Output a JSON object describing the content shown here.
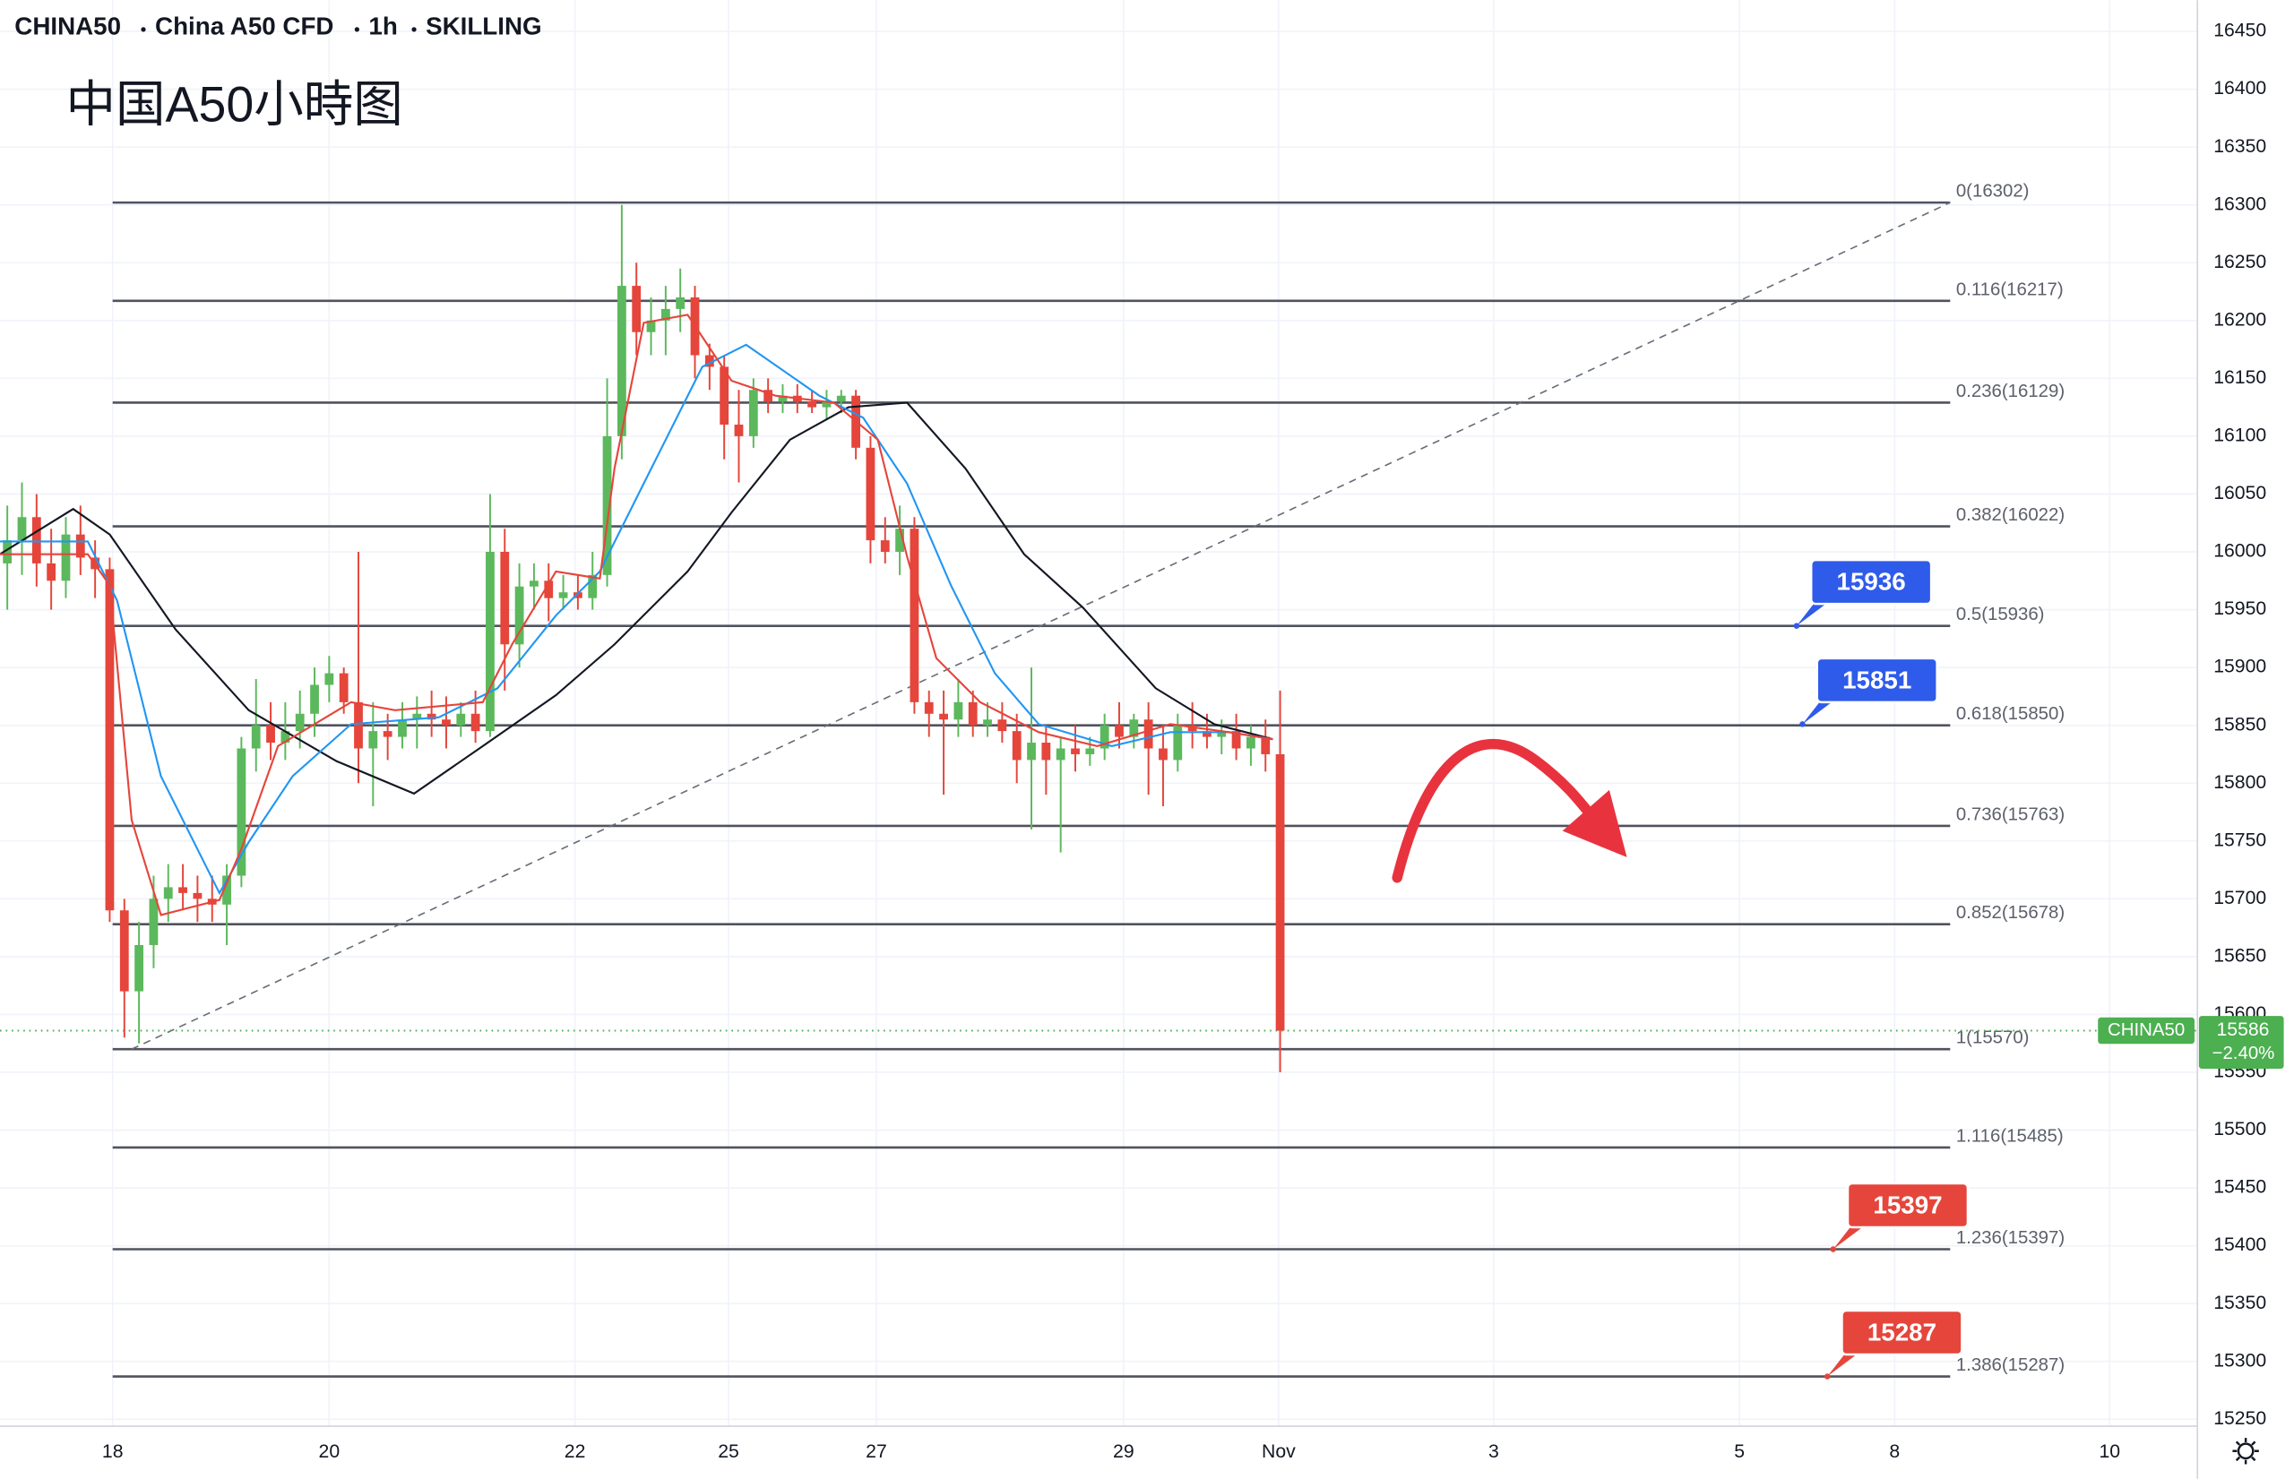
{
  "chart_data": {
    "type": "candlestick",
    "header": [
      "CHINA50",
      "China A50 CFD",
      "1h",
      "SKILLING"
    ],
    "title": "中国A50小時图",
    "xlim": [
      0,
      150
    ],
    "xticks": [
      {
        "value": 7.7,
        "label": "18"
      },
      {
        "value": 22.5,
        "label": "20"
      },
      {
        "value": 39.3,
        "label": "22"
      },
      {
        "value": 49.8,
        "label": "25"
      },
      {
        "value": 59.9,
        "label": "27"
      },
      {
        "value": 76.8,
        "label": "29"
      },
      {
        "value": 87.4,
        "label": "Nov"
      },
      {
        "value": 102.1,
        "label": "3"
      },
      {
        "value": 118.9,
        "label": "5"
      },
      {
        "value": 129.5,
        "label": "8"
      },
      {
        "value": 144.2,
        "label": "10"
      }
    ],
    "ylim": [
      15244,
      16477
    ],
    "yticks": [
      15250,
      15300,
      15350,
      15400,
      15450,
      15500,
      15550,
      15600,
      15650,
      15700,
      15750,
      15800,
      15850,
      15900,
      15950,
      16000,
      16050,
      16100,
      16150,
      16200,
      16250,
      16300,
      16350,
      16400,
      16450
    ],
    "grid": true,
    "up_color": "#5cb85c",
    "down_color": "#e5453b",
    "candles": {
      "x": [
        0.5,
        1.5,
        2.5,
        3.5,
        4.5,
        5.5,
        6.5,
        7.5,
        8.5,
        9.5,
        10.5,
        11.5,
        12.5,
        13.5,
        14.5,
        15.5,
        16.5,
        17.5,
        18.5,
        19.5,
        20.5,
        21.5,
        22.5,
        23.5,
        24.5,
        25.5,
        26.5,
        27.5,
        28.5,
        29.5,
        30.5,
        31.5,
        32.5,
        33.5,
        34.5,
        35.5,
        36.5,
        37.5,
        38.5,
        39.5,
        40.5,
        41.5,
        42.5,
        43.5,
        44.5,
        45.5,
        46.5,
        47.5,
        48.5,
        49.5,
        50.5,
        51.5,
        52.5,
        53.5,
        54.5,
        55.5,
        56.5,
        57.5,
        58.5,
        59.5,
        60.5,
        61.5,
        62.5,
        63.5,
        64.5,
        65.5,
        66.5,
        67.5,
        68.5,
        69.5,
        70.5,
        71.5,
        72.5,
        73.5,
        74.5,
        75.5,
        76.5,
        77.5,
        78.5,
        79.5,
        80.5,
        81.5,
        82.5,
        83.5,
        84.5,
        85.5,
        86.5,
        87.5
      ],
      "open": [
        15990,
        16010,
        16030,
        15990,
        15975,
        16015,
        15995,
        15985,
        15690,
        15620,
        15660,
        15700,
        15710,
        15705,
        15700,
        15695,
        15720,
        15830,
        15850,
        15835,
        15845,
        15860,
        15885,
        15895,
        15870,
        15830,
        15845,
        15840,
        15855,
        15860,
        15855,
        15850,
        15860,
        15845,
        16000,
        15920,
        15970,
        15975,
        15960,
        15965,
        15960,
        15980,
        16100,
        16230,
        16190,
        16200,
        16210,
        16220,
        16170,
        16160,
        16110,
        16100,
        16140,
        16130,
        16135,
        16130,
        16125,
        16130,
        16135,
        16090,
        16010,
        16000,
        16020,
        15870,
        15860,
        15855,
        15870,
        15850,
        15855,
        15845,
        15820,
        15835,
        15820,
        15830,
        15825,
        15830,
        15850,
        15840,
        15855,
        15830,
        15820,
        15850,
        15845,
        15840,
        15845,
        15830,
        15840,
        15825
      ],
      "high": [
        16040,
        16060,
        16050,
        16020,
        16030,
        16040,
        16010,
        15995,
        15700,
        15680,
        15720,
        15730,
        15730,
        15720,
        15720,
        15730,
        15840,
        15890,
        15870,
        15870,
        15880,
        15900,
        15910,
        15900,
        16000,
        15870,
        15860,
        15870,
        15875,
        15880,
        15875,
        15870,
        15880,
        16050,
        16020,
        15990,
        15990,
        15990,
        15980,
        15980,
        16000,
        16150,
        16300,
        16250,
        16220,
        16230,
        16245,
        16230,
        16180,
        16170,
        16140,
        16150,
        16150,
        16145,
        16145,
        16140,
        16140,
        16140,
        16140,
        16100,
        16030,
        16040,
        16030,
        15880,
        15880,
        15890,
        15880,
        15870,
        15870,
        15860,
        15900,
        15850,
        15840,
        15850,
        15840,
        15860,
        15870,
        15860,
        15870,
        15850,
        15860,
        15870,
        15860,
        15855,
        15860,
        15850,
        15855,
        15880
      ],
      "low": [
        15950,
        15980,
        15970,
        15950,
        15960,
        15980,
        15960,
        15680,
        15580,
        15575,
        15640,
        15680,
        15690,
        15680,
        15680,
        15660,
        15710,
        15810,
        15820,
        15820,
        15830,
        15840,
        15870,
        15860,
        15800,
        15780,
        15820,
        15830,
        15830,
        15840,
        15830,
        15840,
        15835,
        15840,
        15880,
        15900,
        15950,
        15940,
        15950,
        15950,
        15950,
        15970,
        16080,
        16170,
        16170,
        16170,
        16190,
        16150,
        16140,
        16080,
        16060,
        16090,
        16120,
        16120,
        16120,
        16120,
        16115,
        16120,
        16080,
        15990,
        15990,
        15980,
        15860,
        15840,
        15790,
        15840,
        15840,
        15840,
        15835,
        15800,
        15760,
        15790,
        15740,
        15810,
        15815,
        15820,
        15830,
        15830,
        15790,
        15780,
        15810,
        15830,
        15830,
        15825,
        15820,
        15815,
        15810,
        15550
      ],
      "close": [
        16010,
        16030,
        15990,
        15975,
        16015,
        15995,
        15985,
        15690,
        15620,
        15660,
        15700,
        15710,
        15705,
        15700,
        15695,
        15720,
        15830,
        15850,
        15835,
        15845,
        15860,
        15885,
        15895,
        15870,
        15830,
        15845,
        15840,
        15855,
        15860,
        15855,
        15850,
        15860,
        15845,
        16000,
        15920,
        15970,
        15975,
        15960,
        15965,
        15960,
        15980,
        16100,
        16230,
        16190,
        16200,
        16210,
        16220,
        16170,
        16160,
        16110,
        16100,
        16140,
        16130,
        16135,
        16130,
        16125,
        16130,
        16135,
        16090,
        16010,
        16000,
        16020,
        15870,
        15860,
        15855,
        15870,
        15850,
        15855,
        15845,
        15820,
        15835,
        15820,
        15830,
        15825,
        15830,
        15850,
        15840,
        15855,
        15830,
        15820,
        15850,
        15845,
        15840,
        15845,
        15830,
        15840,
        15825,
        15586
      ]
    },
    "series": [
      {
        "color": "#131722",
        "x": [
          0,
          5,
          7.5,
          12,
          17,
          23,
          28.3,
          33,
          38,
          42,
          47,
          50,
          54,
          58,
          62,
          66,
          70,
          74,
          79,
          83,
          87
        ],
        "values": [
          15998,
          16037,
          16015,
          15933,
          15863,
          15819,
          15791,
          15832,
          15876,
          15920,
          15983,
          16034,
          16097,
          16125,
          16129,
          16072,
          15998,
          15952,
          15882,
          15851,
          15838
        ]
      },
      {
        "color": "#2196f3",
        "x": [
          0,
          6,
          8,
          11,
          15,
          17,
          20,
          24,
          30,
          34,
          38,
          41,
          44,
          48,
          51,
          56,
          59,
          62,
          65,
          68,
          71,
          76,
          80,
          84,
          87
        ],
        "values": [
          16009,
          16009,
          15958,
          15806,
          15705,
          15749,
          15806,
          15851,
          15857,
          15882,
          15945,
          15983,
          16059,
          16160,
          16179,
          16135,
          16116,
          16059,
          15971,
          15895,
          15851,
          15832,
          15844,
          15844,
          15838
        ]
      },
      {
        "color": "#e5453b",
        "x": [
          0,
          6,
          7.5,
          9,
          11,
          15,
          16.5,
          19,
          24,
          27,
          33,
          35,
          38,
          41,
          42,
          44,
          47,
          50,
          53,
          57,
          60,
          62,
          64,
          67,
          71,
          75,
          80,
          84,
          87
        ],
        "values": [
          15998,
          15998,
          15971,
          15768,
          15686,
          15699,
          15743,
          15832,
          15870,
          15863,
          15870,
          15920,
          15983,
          15977,
          16072,
          16198,
          16205,
          16148,
          16135,
          16129,
          16097,
          15996,
          15908,
          15870,
          15844,
          15832,
          15851,
          15844,
          15838
        ]
      }
    ],
    "fib": {
      "x": [
        7.7,
        133.3
      ],
      "color": "#50535e",
      "levels": [
        {
          "label": "0(16302)",
          "value": 16302
        },
        {
          "label": "0.116(16217)",
          "value": 16217
        },
        {
          "label": "0.236(16129)",
          "value": 16129
        },
        {
          "label": "0.382(16022)",
          "value": 16022
        },
        {
          "label": "0.5(15936)",
          "value": 15936
        },
        {
          "label": "0.618(15850)",
          "value": 15850
        },
        {
          "label": "0.736(15763)",
          "value": 15763
        },
        {
          "label": "0.852(15678)",
          "value": 15678
        },
        {
          "label": "1(15570)",
          "value": 15570
        },
        {
          "label": "1.116(15485)",
          "value": 15485
        },
        {
          "label": "1.236(15397)",
          "value": 15397
        },
        {
          "label": "1.386(15287)",
          "value": 15287
        }
      ]
    },
    "trendline": {
      "x": [
        9,
        133.3
      ],
      "values": [
        15570,
        16302
      ]
    },
    "callouts": [
      {
        "value": 15936,
        "color": "#2f5bea"
      },
      {
        "value": 15851,
        "color": "#2f5bea"
      },
      {
        "value": 15397,
        "color": "#e5453b"
      },
      {
        "value": 15287,
        "color": "#e5453b"
      }
    ],
    "last_price": {
      "name": "CHINA50",
      "value": 15586,
      "change": -2.4,
      "change_label": "−2.40%",
      "color": "#4caf50"
    }
  }
}
